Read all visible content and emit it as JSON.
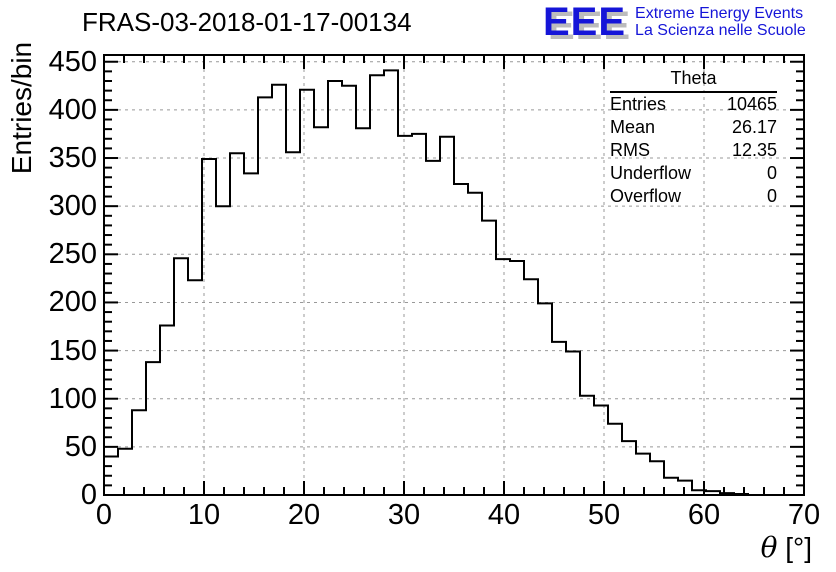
{
  "title": "FRAS-03-2018-01-17-00134",
  "logo": {
    "acronym": "EEE",
    "line1": "Extreme Energy Events",
    "line2": "La Scienza nelle Scuole",
    "text_color": "#1515d8",
    "shadow_color": "#bcbcbc"
  },
  "stats": {
    "title": "Theta",
    "rows": [
      {
        "label": "Entries",
        "value": "10465"
      },
      {
        "label": "Mean",
        "value": "26.17"
      },
      {
        "label": "RMS",
        "value": "12.35"
      },
      {
        "label": "Underflow",
        "value": "0"
      },
      {
        "label": "Overflow",
        "value": "0"
      }
    ]
  },
  "axes": {
    "y_title": "Entries/bin",
    "x_title_symbol": "θ",
    "x_title_rest": " [°]"
  },
  "chart_data": {
    "type": "bar",
    "title": "FRAS-03-2018-01-17-00134",
    "xlabel": "θ [°]",
    "ylabel": "Entries/bin",
    "xlim": [
      0,
      70
    ],
    "ylim": [
      0,
      457
    ],
    "bin_start": 0,
    "bin_width": 1.4,
    "x_ticks": [
      0,
      10,
      20,
      30,
      40,
      50,
      60,
      70
    ],
    "y_ticks": [
      0,
      50,
      100,
      150,
      200,
      250,
      300,
      350,
      400,
      450
    ],
    "x_minor_step": 2,
    "y_minor_step": 10,
    "grid": true,
    "legend": "stats-box top-right",
    "values": [
      40,
      48,
      88,
      138,
      176,
      246,
      223,
      349,
      300,
      355,
      334,
      413,
      426,
      356,
      421,
      382,
      430,
      425,
      381,
      436,
      441,
      373,
      375,
      347,
      372,
      323,
      314,
      285,
      245,
      243,
      224,
      199,
      159,
      149,
      103,
      93,
      74,
      56,
      43,
      35,
      18,
      15,
      5,
      4,
      2,
      1,
      0,
      0,
      0,
      0
    ],
    "line_color": "#000000",
    "grid_color": "#999999"
  }
}
